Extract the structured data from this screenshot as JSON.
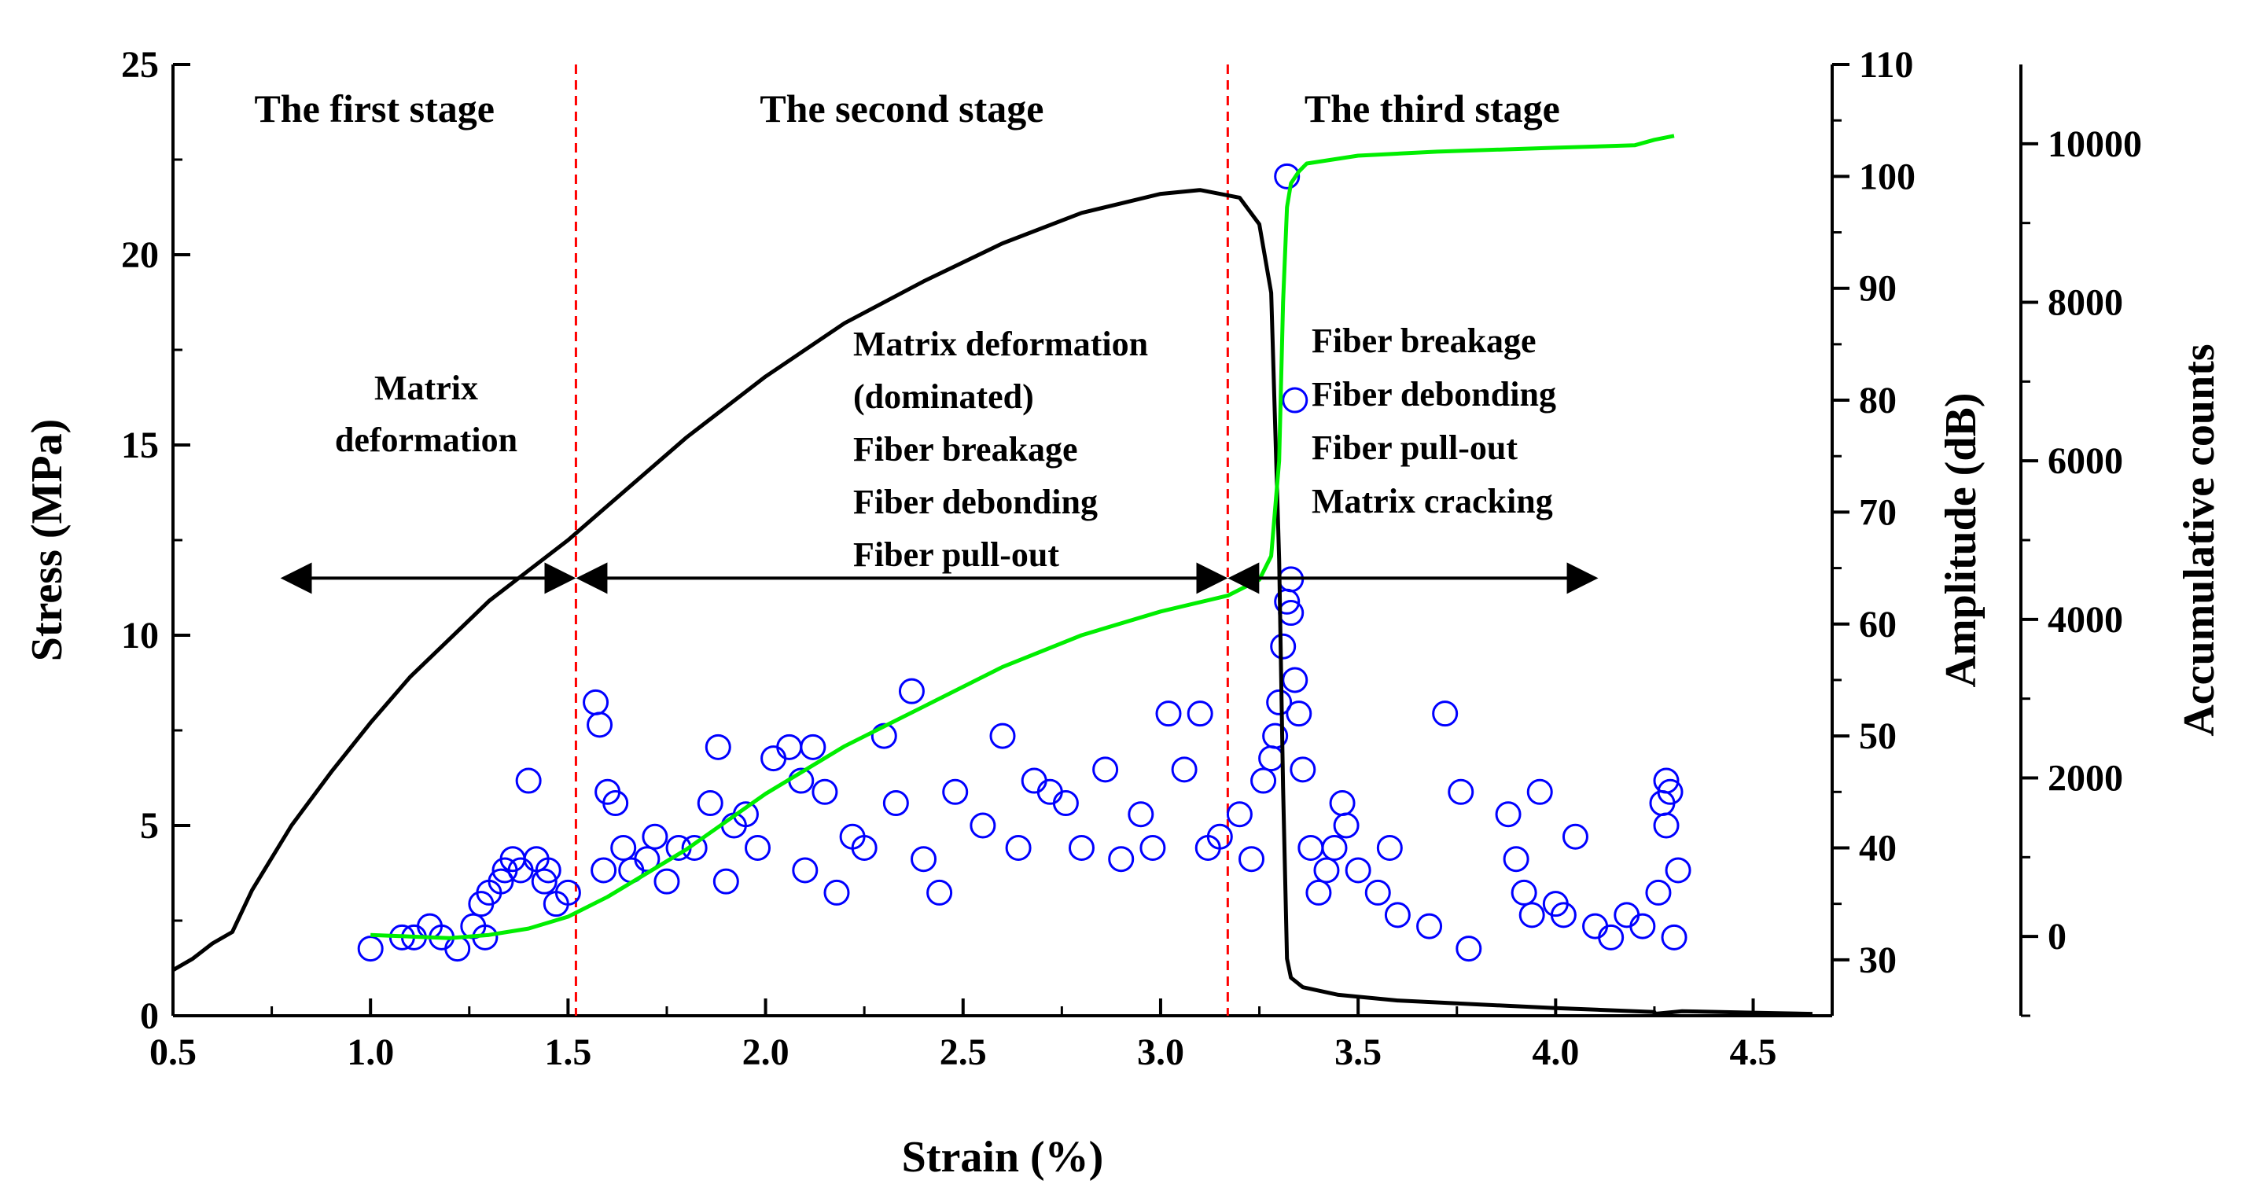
{
  "chart_data": {
    "type": "line",
    "title": "",
    "xlabel": "Strain (%)",
    "ylabel": "Stress (MPa)",
    "y2label": "Amplitude (dB)",
    "y3label": "Accumulative counts",
    "xlim": [
      0.5,
      4.7
    ],
    "ylim": [
      0,
      25
    ],
    "y2lim": [
      25,
      110
    ],
    "y3lim": [
      -1000,
      11000
    ],
    "x_ticks": [
      "0.5",
      "1.0",
      "1.5",
      "2.0",
      "2.5",
      "3.0",
      "3.5",
      "4.0",
      "4.5"
    ],
    "y_ticks": [
      "0",
      "5",
      "10",
      "15",
      "20",
      "25"
    ],
    "y2_ticks": [
      "30",
      "40",
      "50",
      "60",
      "70",
      "80",
      "90",
      "100",
      "110"
    ],
    "y3_ticks": [
      "0",
      "2000",
      "4000",
      "6000",
      "8000",
      "10000"
    ],
    "stage_boundaries": [
      1.52,
      3.17
    ],
    "stage_labels": [
      "The first stage",
      "The second stage",
      "The third stage"
    ],
    "annotations": {
      "stage1": [
        "Matrix",
        "deformation"
      ],
      "stage2": [
        "Matrix deformation",
        "(dominated)",
        "Fiber breakage",
        "Fiber debonding",
        "Fiber pull-out"
      ],
      "stage3": [
        "Fiber breakage",
        "Fiber debonding",
        "Fiber pull-out",
        "Matrix cracking"
      ]
    },
    "arrow_y_stress": 11.5,
    "colors": {
      "stress": "#000000",
      "counts": "#00ee00",
      "amplitude": "#0000ff",
      "boundary": "#ff0000"
    },
    "series": [
      {
        "name": "Stress",
        "axis": "left",
        "color": "#000000",
        "x": [
          0.5,
          0.55,
          0.6,
          0.65,
          0.7,
          0.8,
          0.9,
          1.0,
          1.1,
          1.2,
          1.3,
          1.4,
          1.5,
          1.6,
          1.8,
          2.0,
          2.2,
          2.4,
          2.6,
          2.8,
          3.0,
          3.1,
          3.2,
          3.25,
          3.28,
          3.3,
          3.31,
          3.32,
          3.33,
          3.36,
          3.45,
          3.6,
          3.8,
          4.0,
          4.25,
          4.25,
          4.32,
          4.5,
          4.65
        ],
        "y": [
          1.2,
          1.5,
          1.9,
          2.2,
          3.3,
          5.0,
          6.4,
          7.7,
          8.9,
          9.9,
          10.9,
          11.7,
          12.5,
          13.4,
          15.2,
          16.8,
          18.2,
          19.3,
          20.3,
          21.1,
          21.6,
          21.7,
          21.5,
          20.8,
          19.0,
          12.0,
          6.0,
          1.5,
          1.0,
          0.75,
          0.55,
          0.4,
          0.3,
          0.2,
          0.1,
          0.05,
          0.12,
          0.08,
          0.05
        ]
      },
      {
        "name": "Accumulative counts",
        "axis": "right-outer",
        "color": "#00ee00",
        "x": [
          1.0,
          1.1,
          1.2,
          1.3,
          1.4,
          1.5,
          1.6,
          1.8,
          2.0,
          2.2,
          2.4,
          2.6,
          2.8,
          3.0,
          3.17,
          3.25,
          3.28,
          3.3,
          3.31,
          3.32,
          3.33,
          3.35,
          3.37,
          3.5,
          3.7,
          4.0,
          4.2,
          4.25,
          4.3
        ],
        "y": [
          20,
          0,
          -20,
          20,
          100,
          250,
          500,
          1100,
          1800,
          2400,
          2900,
          3400,
          3800,
          4100,
          4300,
          4500,
          4800,
          6000,
          8000,
          9200,
          9500,
          9650,
          9750,
          9850,
          9900,
          9950,
          9980,
          10050,
          10100
        ]
      },
      {
        "name": "Amplitude",
        "axis": "right-inner",
        "type": "scatter",
        "color": "#0000ff",
        "x": [
          1.0,
          1.08,
          1.11,
          1.15,
          1.18,
          1.22,
          1.26,
          1.28,
          1.29,
          1.3,
          1.33,
          1.34,
          1.36,
          1.38,
          1.4,
          1.42,
          1.44,
          1.45,
          1.47,
          1.5,
          1.57,
          1.58,
          1.59,
          1.6,
          1.62,
          1.64,
          1.66,
          1.7,
          1.72,
          1.75,
          1.78,
          1.82,
          1.86,
          1.88,
          1.9,
          1.92,
          1.95,
          1.98,
          2.02,
          2.06,
          2.09,
          2.1,
          2.12,
          2.15,
          2.18,
          2.22,
          2.25,
          2.3,
          2.33,
          2.37,
          2.4,
          2.44,
          2.48,
          2.55,
          2.6,
          2.64,
          2.68,
          2.72,
          2.76,
          2.8,
          2.86,
          2.9,
          2.95,
          2.98,
          3.02,
          3.06,
          3.1,
          3.12,
          3.15,
          3.2,
          3.23,
          3.26,
          3.28,
          3.29,
          3.3,
          3.31,
          3.32,
          3.32,
          3.33,
          3.33,
          3.34,
          3.34,
          3.35,
          3.36,
          3.38,
          3.4,
          3.42,
          3.44,
          3.46,
          3.47,
          3.5,
          3.55,
          3.58,
          3.6,
          3.68,
          3.72,
          3.76,
          3.78,
          3.88,
          3.9,
          3.92,
          3.94,
          3.96,
          4.0,
          4.02,
          4.05,
          4.1,
          4.14,
          4.18,
          4.22,
          4.26,
          4.27,
          4.28,
          4.28,
          4.29,
          4.3,
          4.31
        ],
        "y": [
          31,
          32,
          32,
          33,
          32,
          31,
          33,
          35,
          32,
          36,
          37,
          38,
          39,
          38,
          46,
          39,
          37,
          38,
          35,
          36,
          53,
          51,
          38,
          45,
          44,
          40,
          38,
          39,
          41,
          37,
          40,
          40,
          44,
          49,
          37,
          42,
          43,
          40,
          48,
          49,
          46,
          38,
          49,
          45,
          36,
          41,
          40,
          50,
          44,
          54,
          39,
          36,
          45,
          42,
          50,
          40,
          46,
          45,
          44,
          40,
          47,
          39,
          43,
          40,
          52,
          47,
          52,
          40,
          41,
          43,
          39,
          46,
          48,
          50,
          53,
          58,
          62,
          100,
          61,
          64,
          80,
          55,
          52,
          47,
          40,
          36,
          38,
          40,
          44,
          42,
          38,
          36,
          40,
          34,
          33,
          52,
          45,
          31,
          43,
          39,
          36,
          34,
          45,
          35,
          34,
          41,
          33,
          32,
          34,
          33,
          36,
          44,
          46,
          42,
          45,
          32,
          38
        ]
      }
    ]
  }
}
